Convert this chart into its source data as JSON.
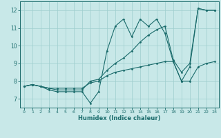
{
  "title": "",
  "xlabel": "Humidex (Indice chaleur)",
  "ylabel": "",
  "xlim": [
    -0.5,
    23.5
  ],
  "ylim": [
    6.5,
    12.5
  ],
  "xticks": [
    0,
    1,
    2,
    3,
    4,
    5,
    6,
    7,
    8,
    9,
    10,
    11,
    12,
    13,
    14,
    15,
    16,
    17,
    18,
    19,
    20,
    21,
    22,
    23
  ],
  "yticks": [
    7,
    8,
    9,
    10,
    11,
    12
  ],
  "bg_color": "#c8e8e8",
  "line_color": "#1a6b6b",
  "grid_color": "#9ecece",
  "lines": [
    {
      "x": [
        0,
        1,
        2,
        3,
        4,
        5,
        6,
        7,
        8,
        9,
        10,
        11,
        12,
        13,
        14,
        15,
        16,
        17,
        18,
        19,
        20,
        21,
        22,
        23
      ],
      "y": [
        7.7,
        7.8,
        7.7,
        7.5,
        7.4,
        7.4,
        7.4,
        7.4,
        6.75,
        7.4,
        9.7,
        11.1,
        11.5,
        10.5,
        11.5,
        11.1,
        11.5,
        10.7,
        9.1,
        8.0,
        8.8,
        12.1,
        12.0,
        12.0
      ]
    },
    {
      "x": [
        0,
        1,
        2,
        3,
        4,
        5,
        6,
        7,
        8,
        9,
        10,
        11,
        12,
        13,
        14,
        15,
        16,
        17,
        18,
        19,
        20,
        21,
        22,
        23
      ],
      "y": [
        7.7,
        7.8,
        7.7,
        7.6,
        7.6,
        7.6,
        7.6,
        7.6,
        7.9,
        8.0,
        8.3,
        8.5,
        8.6,
        8.7,
        8.8,
        8.9,
        9.0,
        9.1,
        9.1,
        8.0,
        8.0,
        8.8,
        9.0,
        9.1
      ]
    },
    {
      "x": [
        0,
        1,
        2,
        3,
        4,
        5,
        6,
        7,
        8,
        9,
        10,
        11,
        12,
        13,
        14,
        15,
        16,
        17,
        18,
        19,
        20,
        21,
        22,
        23
      ],
      "y": [
        7.7,
        7.8,
        7.7,
        7.6,
        7.5,
        7.5,
        7.5,
        7.5,
        8.0,
        8.1,
        8.6,
        9.0,
        9.3,
        9.7,
        10.2,
        10.6,
        10.9,
        11.1,
        9.2,
        8.5,
        9.0,
        12.1,
        12.0,
        12.0
      ]
    }
  ]
}
